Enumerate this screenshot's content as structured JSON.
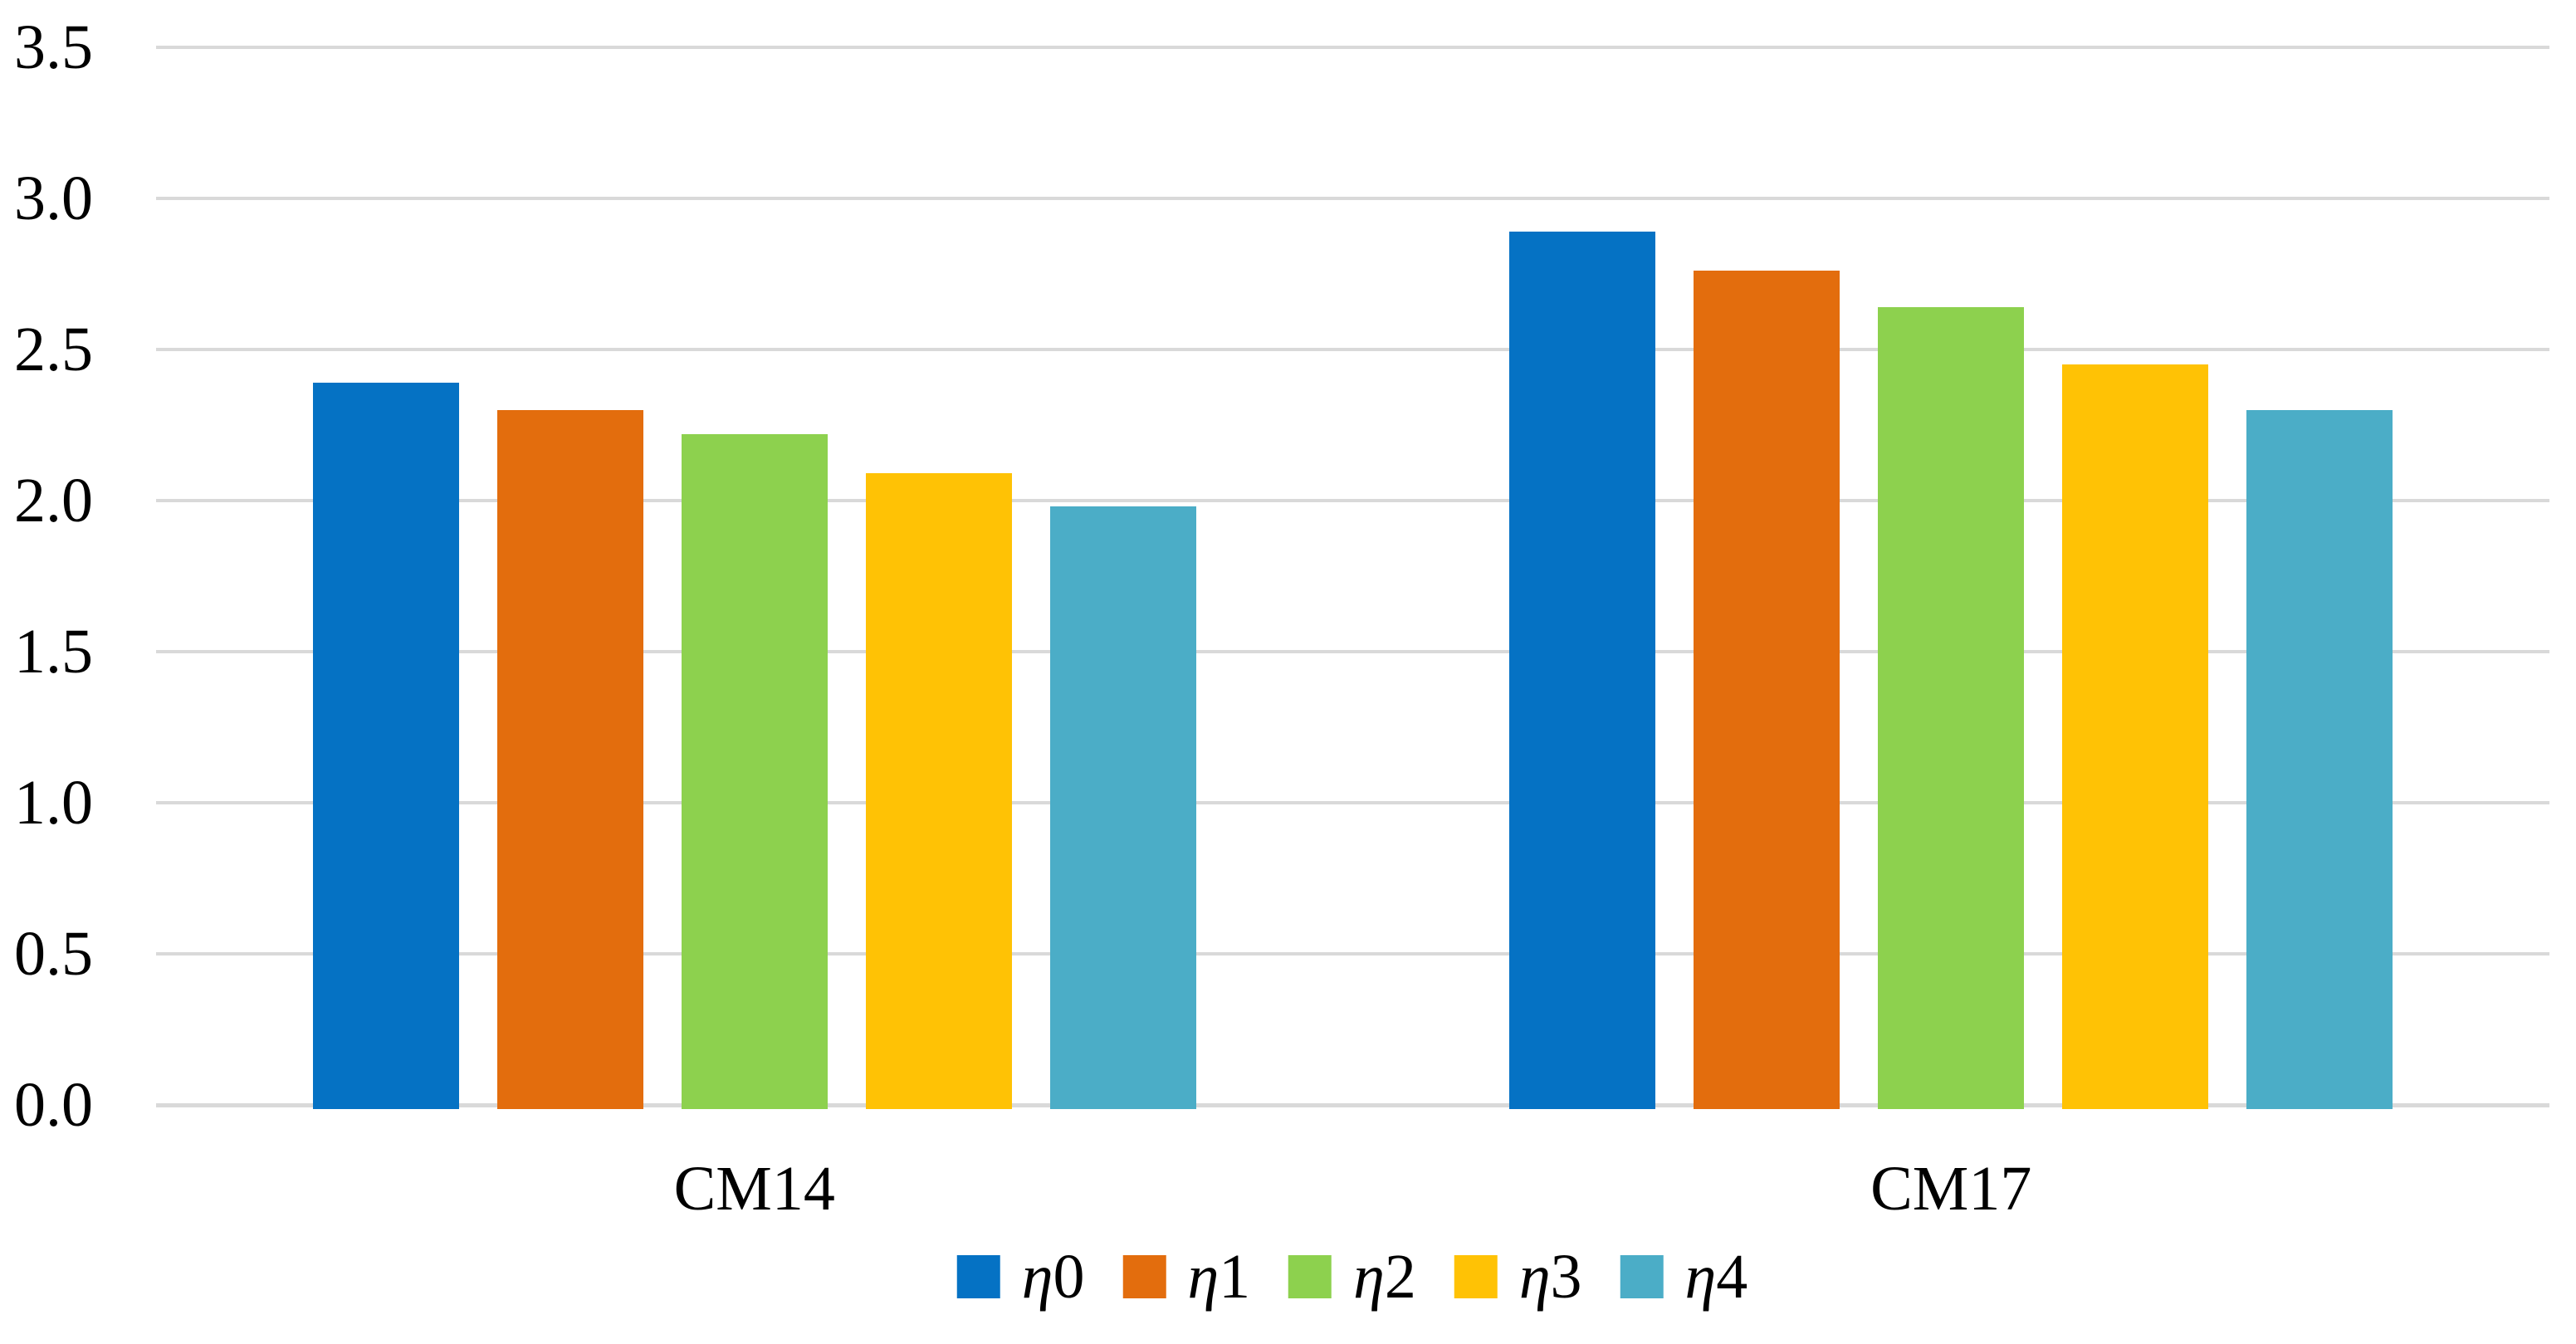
{
  "figure": {
    "background": "#ffffff",
    "text_color": "#000000",
    "gridline_color": "#d9d9d9"
  },
  "chart_data": {
    "type": "bar",
    "title": "",
    "xlabel": "",
    "ylabel": "",
    "categories": [
      "CM14",
      "CM17"
    ],
    "series": [
      {
        "name": "η0",
        "symbol": "η",
        "index": "0",
        "color": "#0572c4",
        "values": [
          2.39,
          2.89
        ]
      },
      {
        "name": "η1",
        "symbol": "η",
        "index": "1",
        "color": "#e36d0d",
        "values": [
          2.3,
          2.76
        ]
      },
      {
        "name": "η2",
        "symbol": "η",
        "index": "2",
        "color": "#8dd14e",
        "values": [
          2.22,
          2.64
        ]
      },
      {
        "name": "η3",
        "symbol": "η",
        "index": "3",
        "color": "#ffc205",
        "values": [
          2.09,
          2.45
        ]
      },
      {
        "name": "η4",
        "symbol": "η",
        "index": "4",
        "color": "#4badc7",
        "values": [
          1.98,
          2.3
        ]
      }
    ],
    "ylim": [
      0.0,
      3.5
    ],
    "ytick_step": 0.5,
    "yticks": [
      "0.0",
      "0.5",
      "1.0",
      "1.5",
      "2.0",
      "2.5",
      "3.0",
      "3.5"
    ],
    "grid": "horizontal",
    "legend_position": "bottom"
  }
}
